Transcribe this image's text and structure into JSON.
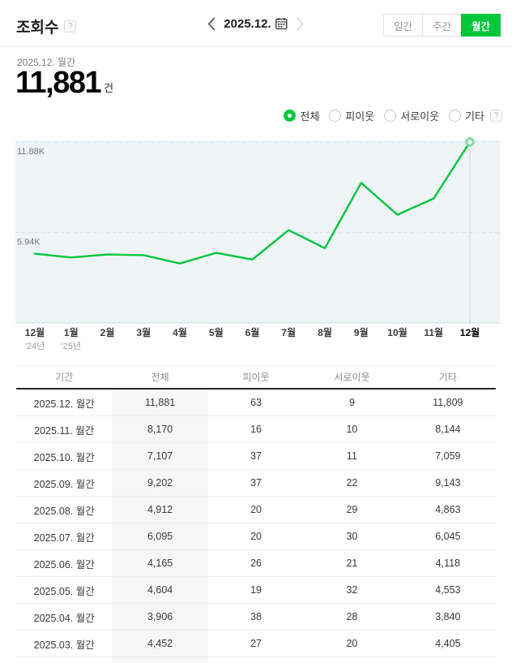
{
  "header": {
    "title": "조회수",
    "help_icon": "?",
    "date_nav": {
      "current": "2025.12."
    },
    "tabs": [
      {
        "label": "일간",
        "active": false
      },
      {
        "label": "주간",
        "active": false
      },
      {
        "label": "월간",
        "active": true
      }
    ]
  },
  "summary": {
    "period": "2025.12. 월간",
    "value": "11,881",
    "unit": "건"
  },
  "filters": {
    "options": [
      {
        "label": "전체",
        "selected": true
      },
      {
        "label": "피이웃",
        "selected": false
      },
      {
        "label": "서로이웃",
        "selected": false
      },
      {
        "label": "기타",
        "selected": false
      }
    ],
    "help_icon": "?"
  },
  "colors": {
    "accent": "#00c73c",
    "line": "#00c73c",
    "marker_ring": "#7bdd9e",
    "chart_bg": "#eff4f6",
    "grid": "#dae1e4",
    "axis": "#d3d9dc",
    "reference_line": "#c8d0d5"
  },
  "chart_data": {
    "type": "line",
    "series_name": "전체",
    "x": [
      "12월",
      "1월",
      "2월",
      "3월",
      "4월",
      "5월",
      "6월",
      "7월",
      "8월",
      "9월",
      "10월",
      "11월",
      "12월"
    ],
    "x_sub": [
      "'24년",
      "'25년",
      "",
      "",
      "",
      "",
      "",
      "",
      "",
      "",
      "",
      "",
      ""
    ],
    "values": [
      4550,
      4300,
      4500,
      4452,
      3906,
      4604,
      4165,
      6095,
      4912,
      9202,
      7107,
      8170,
      11881
    ],
    "y_ticks": [
      {
        "label": "11.88K",
        "value": 11881
      },
      {
        "label": "5.94K",
        "value": 5940
      }
    ],
    "ylim": [
      0,
      11881
    ],
    "grid": "dashed-horizontal",
    "legend_position": "none",
    "highlight_last_point": true
  },
  "table": {
    "columns": [
      "기간",
      "전체",
      "피이웃",
      "서로이웃",
      "기타"
    ],
    "highlight_column": 1,
    "rows": [
      [
        "2025.12. 월간",
        "11,881",
        "63",
        "9",
        "11,809"
      ],
      [
        "2025.11. 월간",
        "8,170",
        "16",
        "10",
        "8,144"
      ],
      [
        "2025.10. 월간",
        "7,107",
        "37",
        "11",
        "7,059"
      ],
      [
        "2025.09. 월간",
        "9,202",
        "37",
        "22",
        "9,143"
      ],
      [
        "2025.08. 월간",
        "4,912",
        "20",
        "29",
        "4,863"
      ],
      [
        "2025.07. 월간",
        "6,095",
        "20",
        "30",
        "6,045"
      ],
      [
        "2025.06. 월간",
        "4,165",
        "26",
        "21",
        "4,118"
      ],
      [
        "2025.05. 월간",
        "4,604",
        "19",
        "32",
        "4,553"
      ],
      [
        "2025.04. 월간",
        "3,906",
        "38",
        "28",
        "3,840"
      ],
      [
        "2025.03. 월간",
        "4,452",
        "27",
        "20",
        "4,405"
      ]
    ]
  }
}
